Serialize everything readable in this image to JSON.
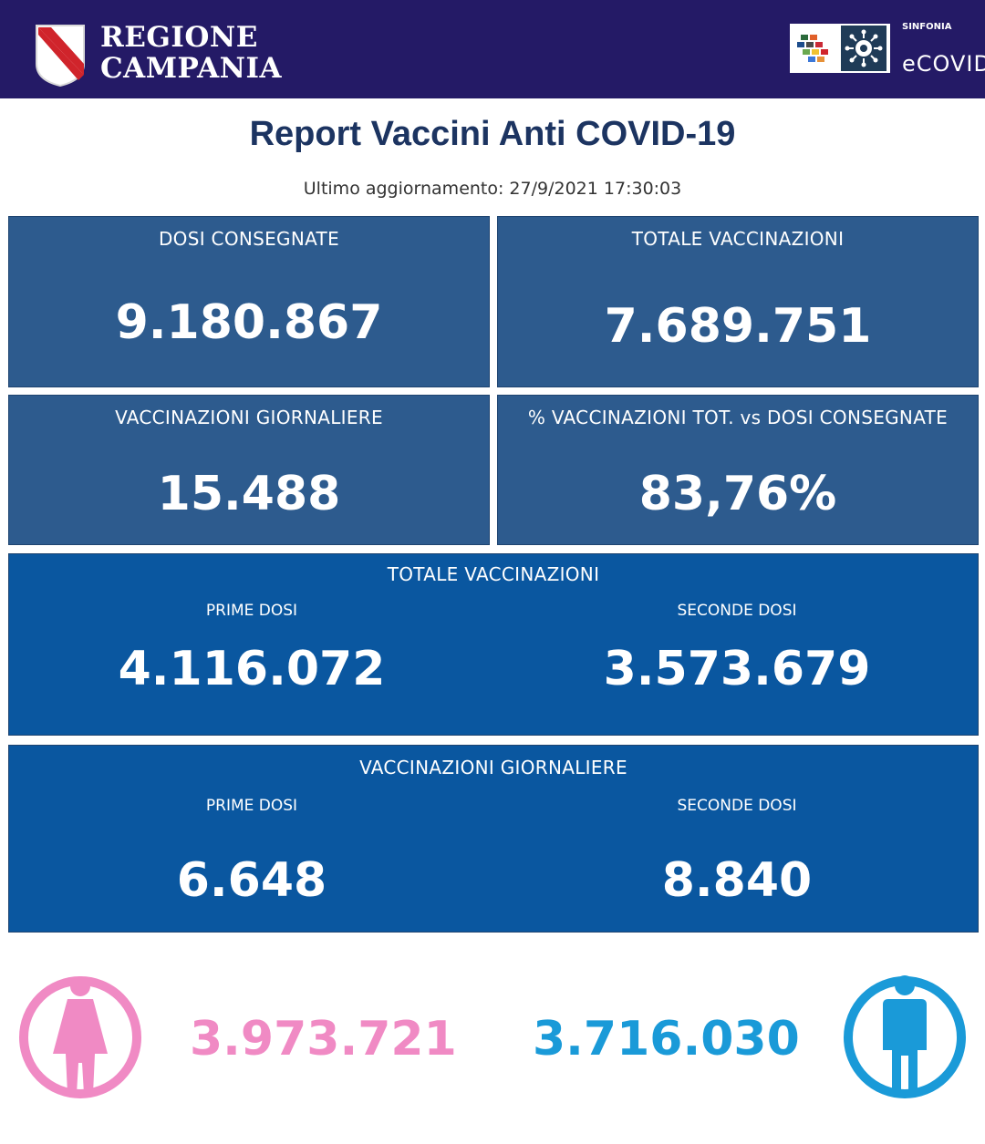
{
  "header": {
    "region_line1": "REGIONE",
    "region_line2": "CAMPANIA",
    "sinfonia_label": "SINFONIA",
    "ecovid_label": "eCOVID",
    "bg_color": "#241a66"
  },
  "report": {
    "title": "Report Vaccini Anti COVID-19",
    "updated": "Ultimo aggiornamento: 27/9/2021  17:30:03"
  },
  "cards": {
    "dosi_consegnate": {
      "label": "DOSI  CONSEGNATE",
      "value": "9.180.867"
    },
    "totale_vaccinazioni": {
      "label": "TOTALE VACCINAZIONI",
      "value": "7.689.751"
    },
    "vaccinazioni_giornaliere": {
      "label": "VACCINAZIONI GIORNALIERE",
      "value": "15.488"
    },
    "percentuale": {
      "label": "% VACCINAZIONI TOT. vs DOSI CONSEGNATE",
      "value": "83,76%"
    }
  },
  "totale_section": {
    "label": "TOTALE VACCINAZIONI",
    "prime_label": "PRIME DOSI",
    "prime_value": "4.116.072",
    "seconde_label": "SECONDE DOSI",
    "seconde_value": "3.573.679"
  },
  "giornaliere_section": {
    "label": "VACCINAZIONI GIORNALIERE",
    "prime_label": "PRIME DOSI",
    "prime_value": "6.648",
    "seconde_label": "SECONDE DOSI",
    "seconde_value": "8.840"
  },
  "gender": {
    "female_value": "3.973.721",
    "male_value": "3.716.030",
    "female_color": "#f08ac4",
    "male_color": "#1a9ad8",
    "female_icon": "female-person-icon",
    "male_icon": "male-person-icon"
  }
}
